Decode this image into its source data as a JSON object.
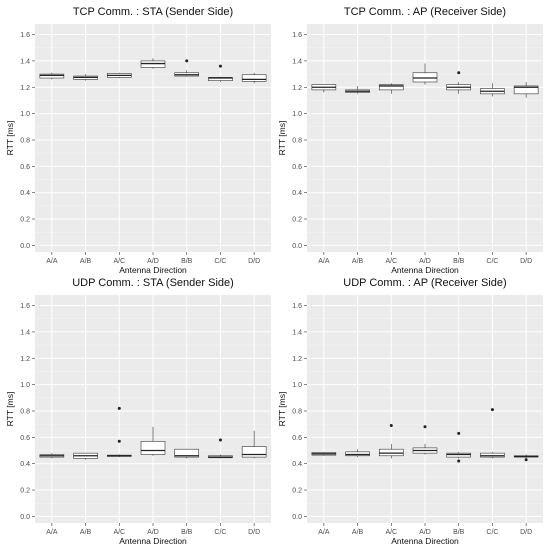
{
  "chart_data": [
    {
      "type": "boxplot",
      "title": "TCP Comm. : STA (Sender Side)",
      "xlabel": "Antenna Direction",
      "ylabel": "RTT [ms]",
      "ylim": [
        -0.05,
        1.68
      ],
      "yticks": [
        "0.0",
        "0.2",
        "0.4",
        "0.6",
        "0.8",
        "1.0",
        "1.2",
        "1.4",
        "1.6"
      ],
      "categories": [
        "A/A",
        "A/B",
        "A/C",
        "A/D",
        "B/B",
        "C/C",
        "D/D"
      ],
      "boxes": [
        {
          "min": 1.26,
          "q1": 1.27,
          "median": 1.29,
          "q3": 1.3,
          "max": 1.31,
          "outliers": []
        },
        {
          "min": 1.25,
          "q1": 1.26,
          "median": 1.275,
          "q3": 1.285,
          "max": 1.3,
          "outliers": []
        },
        {
          "min": 1.27,
          "q1": 1.275,
          "median": 1.29,
          "q3": 1.305,
          "max": 1.31,
          "outliers": []
        },
        {
          "min": 1.34,
          "q1": 1.35,
          "median": 1.38,
          "q3": 1.4,
          "max": 1.42,
          "outliers": []
        },
        {
          "min": 1.28,
          "q1": 1.285,
          "median": 1.295,
          "q3": 1.31,
          "max": 1.33,
          "outliers": [
            1.4
          ]
        },
        {
          "min": 1.24,
          "q1": 1.25,
          "median": 1.27,
          "q3": 1.275,
          "max": 1.28,
          "outliers": [
            1.36
          ]
        },
        {
          "min": 1.23,
          "q1": 1.245,
          "median": 1.26,
          "q3": 1.295,
          "max": 1.31,
          "outliers": []
        }
      ],
      "background": "#ebebeb",
      "grid": true
    },
    {
      "type": "boxplot",
      "title": "TCP Comm. : AP (Receiver Side)",
      "xlabel": "Antenna Direction",
      "ylabel": "RTT [ms]",
      "ylim": [
        -0.05,
        1.68
      ],
      "yticks": [
        "0.0",
        "0.2",
        "0.4",
        "0.6",
        "0.8",
        "1.0",
        "1.2",
        "1.4",
        "1.6"
      ],
      "categories": [
        "A/A",
        "A/B",
        "A/C",
        "A/D",
        "B/B",
        "C/C",
        "D/D"
      ],
      "boxes": [
        {
          "min": 1.16,
          "q1": 1.18,
          "median": 1.2,
          "q3": 1.22,
          "max": 1.22,
          "outliers": []
        },
        {
          "min": 1.15,
          "q1": 1.16,
          "median": 1.17,
          "q3": 1.18,
          "max": 1.21,
          "outliers": []
        },
        {
          "min": 1.15,
          "q1": 1.18,
          "median": 1.21,
          "q3": 1.22,
          "max": 1.23,
          "outliers": []
        },
        {
          "min": 1.22,
          "q1": 1.24,
          "median": 1.27,
          "q3": 1.31,
          "max": 1.38,
          "outliers": []
        },
        {
          "min": 1.15,
          "q1": 1.18,
          "median": 1.2,
          "q3": 1.22,
          "max": 1.24,
          "outliers": [
            1.31
          ]
        },
        {
          "min": 1.13,
          "q1": 1.15,
          "median": 1.17,
          "q3": 1.19,
          "max": 1.23,
          "outliers": []
        },
        {
          "min": 1.12,
          "q1": 1.15,
          "median": 1.2,
          "q3": 1.21,
          "max": 1.24,
          "outliers": []
        }
      ],
      "background": "#ebebeb",
      "grid": true
    },
    {
      "type": "boxplot",
      "title": "UDP Comm. : STA (Sender Side)",
      "xlabel": "Antenna Direction",
      "ylabel": "RTT [ms]",
      "ylim": [
        -0.05,
        1.68
      ],
      "yticks": [
        "0.0",
        "0.2",
        "0.4",
        "0.6",
        "0.8",
        "1.0",
        "1.2",
        "1.4",
        "1.6"
      ],
      "categories": [
        "A/A",
        "A/B",
        "A/C",
        "A/D",
        "B/B",
        "C/C",
        "D/D"
      ],
      "boxes": [
        {
          "min": 0.44,
          "q1": 0.45,
          "median": 0.46,
          "q3": 0.47,
          "max": 0.48,
          "outliers": []
        },
        {
          "min": 0.43,
          "q1": 0.44,
          "median": 0.46,
          "q3": 0.48,
          "max": 0.48,
          "outliers": []
        },
        {
          "min": 0.45,
          "q1": 0.455,
          "median": 0.46,
          "q3": 0.465,
          "max": 0.47,
          "outliers": [
            0.57,
            0.82
          ]
        },
        {
          "min": 0.46,
          "q1": 0.47,
          "median": 0.5,
          "q3": 0.57,
          "max": 0.68,
          "outliers": []
        },
        {
          "min": 0.44,
          "q1": 0.45,
          "median": 0.46,
          "q3": 0.51,
          "max": 0.51,
          "outliers": []
        },
        {
          "min": 0.44,
          "q1": 0.445,
          "median": 0.45,
          "q3": 0.46,
          "max": 0.47,
          "outliers": [
            0.58
          ]
        },
        {
          "min": 0.44,
          "q1": 0.45,
          "median": 0.47,
          "q3": 0.53,
          "max": 0.65,
          "outliers": []
        }
      ],
      "background": "#ebebeb",
      "grid": true
    },
    {
      "type": "boxplot",
      "title": "UDP Comm. : AP (Receiver Side)",
      "xlabel": "Antenna Direction",
      "ylabel": "RTT [ms]",
      "ylim": [
        -0.05,
        1.68
      ],
      "yticks": [
        "0.0",
        "0.2",
        "0.4",
        "0.6",
        "0.8",
        "1.0",
        "1.2",
        "1.4",
        "1.6"
      ],
      "categories": [
        "A/A",
        "A/B",
        "A/C",
        "A/D",
        "B/B",
        "C/C",
        "D/D"
      ],
      "boxes": [
        {
          "min": 0.46,
          "q1": 0.465,
          "median": 0.475,
          "q3": 0.485,
          "max": 0.49,
          "outliers": []
        },
        {
          "min": 0.45,
          "q1": 0.46,
          "median": 0.47,
          "q3": 0.49,
          "max": 0.51,
          "outliers": []
        },
        {
          "min": 0.44,
          "q1": 0.46,
          "median": 0.48,
          "q3": 0.51,
          "max": 0.55,
          "outliers": [
            0.69
          ]
        },
        {
          "min": 0.47,
          "q1": 0.48,
          "median": 0.5,
          "q3": 0.52,
          "max": 0.55,
          "outliers": [
            0.68
          ]
        },
        {
          "min": 0.44,
          "q1": 0.45,
          "median": 0.47,
          "q3": 0.48,
          "max": 0.49,
          "outliers": [
            0.42,
            0.63
          ]
        },
        {
          "min": 0.44,
          "q1": 0.45,
          "median": 0.46,
          "q3": 0.48,
          "max": 0.49,
          "outliers": [
            0.81
          ]
        },
        {
          "min": 0.44,
          "q1": 0.45,
          "median": 0.455,
          "q3": 0.46,
          "max": 0.47,
          "outliers": [
            0.43
          ]
        }
      ],
      "background": "#ebebeb",
      "grid": true
    }
  ]
}
